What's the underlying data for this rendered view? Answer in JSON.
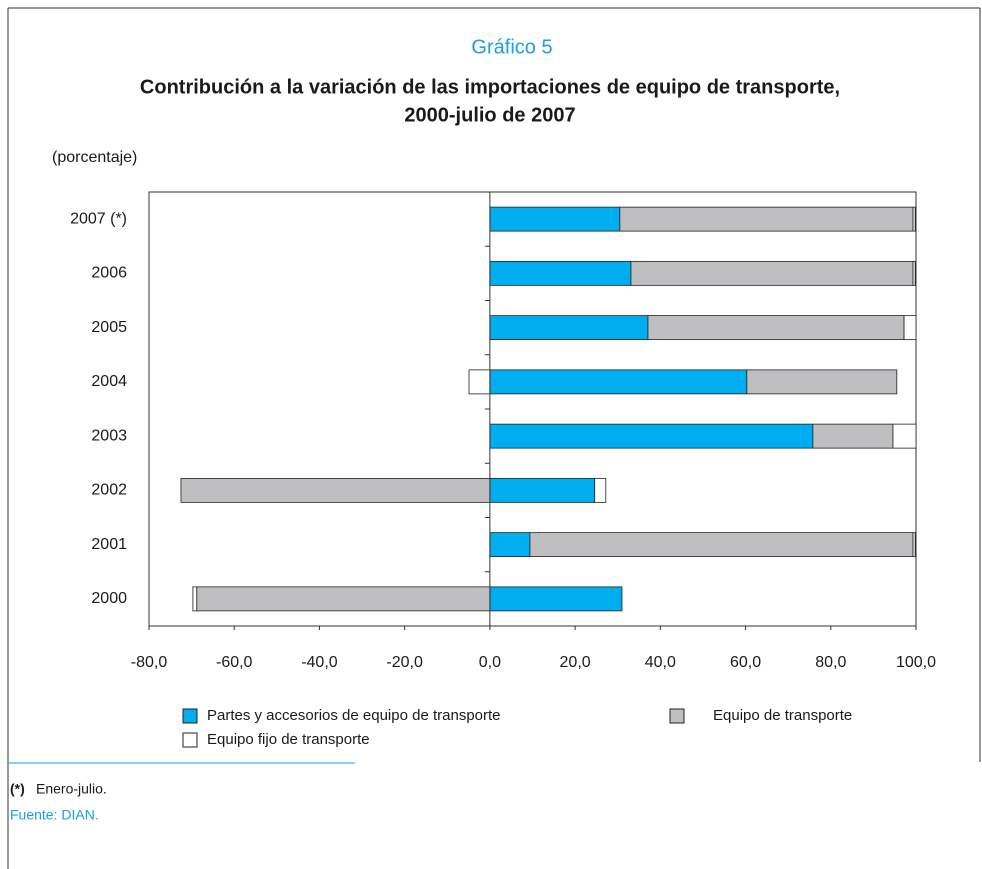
{
  "chart_data": {
    "type": "stacked-barh",
    "heading": "Gráfico 5",
    "title_lines": [
      "Contribución a la variación de las importaciones de equipo de transporte,",
      "2000-julio de 2007"
    ],
    "subtitle": "(porcentaje)",
    "categories": [
      "2000",
      "2001",
      "2002",
      "2003",
      "2004",
      "2005",
      "2006",
      "2007 (*)"
    ],
    "series": [
      {
        "name": "Partes y accesorios de equipo de transporte",
        "color": "#00aeef",
        "values": [
          31.0,
          9.4,
          24.6,
          75.8,
          60.3,
          37.1,
          33.1,
          30.5
        ]
      },
      {
        "name": "Equipo de transporte",
        "color": "#bfbfc1",
        "values": [
          -68.8,
          89.9,
          -72.5,
          18.8,
          35.2,
          60.1,
          66.2,
          68.8
        ]
      },
      {
        "name": "Equipo fijo de transporte",
        "color": "#ffffff",
        "values": [
          -0.9,
          0.5,
          2.6,
          5.4,
          -4.9,
          2.8,
          0.5,
          0.5
        ]
      }
    ],
    "xlim": [
      -80,
      100
    ],
    "xticks": [
      {
        "value": -80,
        "label": "-80,0"
      },
      {
        "value": -60,
        "label": "-60,0"
      },
      {
        "value": -40,
        "label": "-40,0"
      },
      {
        "value": -20,
        "label": "-20,0"
      },
      {
        "value": 0,
        "label": "0,0"
      },
      {
        "value": 20,
        "label": "20,0"
      },
      {
        "value": 40,
        "label": "40,0"
      },
      {
        "value": 60,
        "label": "60,0"
      },
      {
        "value": 80,
        "label": "80,0"
      },
      {
        "value": 100,
        "label": "100,0"
      }
    ],
    "grid": false,
    "footnote": {
      "marker": "(*)",
      "text": "Enero-julio."
    },
    "source": "Fuente: DIAN."
  }
}
